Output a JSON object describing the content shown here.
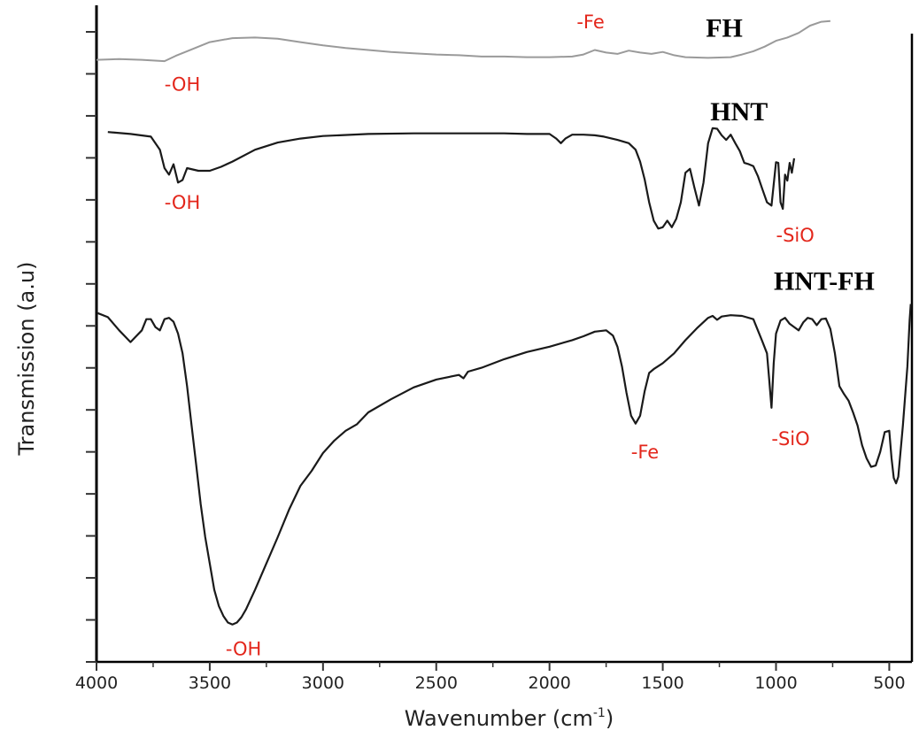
{
  "chart_data": {
    "type": "line",
    "xlabel": "Wavenumber (cm",
    "xlabel_sup": "-1",
    "xlabel_tail": ")",
    "ylabel": "Transmission (a.u)",
    "xlim": [
      4000,
      400
    ],
    "x_reversed": true,
    "ylim": [
      0,
      1
    ],
    "x_ticks": [
      4000,
      3500,
      3000,
      2500,
      2000,
      1500,
      1000,
      500
    ],
    "x_tick_labels": [
      "4000",
      "3500",
      "3000",
      "2500",
      "2000",
      "1500",
      "1000",
      "500"
    ],
    "y_tick_labels_shown": false,
    "grid": false,
    "annotation_color": "#e3261b",
    "series": [
      {
        "name": "FH",
        "color": "#9a9a9a",
        "points": [
          [
            4000,
            0.917
          ],
          [
            3900,
            0.918
          ],
          [
            3800,
            0.917
          ],
          [
            3700,
            0.915
          ],
          [
            3650,
            0.923
          ],
          [
            3600,
            0.93
          ],
          [
            3500,
            0.944
          ],
          [
            3400,
            0.95
          ],
          [
            3300,
            0.951
          ],
          [
            3200,
            0.949
          ],
          [
            3100,
            0.944
          ],
          [
            3000,
            0.939
          ],
          [
            2900,
            0.935
          ],
          [
            2800,
            0.932
          ],
          [
            2700,
            0.929
          ],
          [
            2600,
            0.927
          ],
          [
            2500,
            0.925
          ],
          [
            2400,
            0.924
          ],
          [
            2300,
            0.922
          ],
          [
            2200,
            0.922
          ],
          [
            2100,
            0.921
          ],
          [
            2000,
            0.921
          ],
          [
            1900,
            0.922
          ],
          [
            1850,
            0.925
          ],
          [
            1800,
            0.932
          ],
          [
            1750,
            0.928
          ],
          [
            1700,
            0.926
          ],
          [
            1650,
            0.931
          ],
          [
            1600,
            0.928
          ],
          [
            1550,
            0.926
          ],
          [
            1500,
            0.929
          ],
          [
            1450,
            0.924
          ],
          [
            1400,
            0.921
          ],
          [
            1300,
            0.92
          ],
          [
            1200,
            0.921
          ],
          [
            1150,
            0.925
          ],
          [
            1100,
            0.93
          ],
          [
            1050,
            0.937
          ],
          [
            1000,
            0.946
          ],
          [
            950,
            0.951
          ],
          [
            900,
            0.958
          ],
          [
            850,
            0.969
          ],
          [
            800,
            0.975
          ],
          [
            760,
            0.976
          ]
        ]
      },
      {
        "name": "HNT",
        "color": "#1a1a1a",
        "points": [
          [
            3950,
            0.807
          ],
          [
            3850,
            0.804
          ],
          [
            3760,
            0.8
          ],
          [
            3720,
            0.78
          ],
          [
            3700,
            0.752
          ],
          [
            3680,
            0.742
          ],
          [
            3660,
            0.758
          ],
          [
            3640,
            0.73
          ],
          [
            3620,
            0.734
          ],
          [
            3600,
            0.752
          ],
          [
            3550,
            0.748
          ],
          [
            3500,
            0.748
          ],
          [
            3450,
            0.754
          ],
          [
            3400,
            0.762
          ],
          [
            3300,
            0.78
          ],
          [
            3200,
            0.791
          ],
          [
            3100,
            0.797
          ],
          [
            3000,
            0.801
          ],
          [
            2800,
            0.804
          ],
          [
            2600,
            0.805
          ],
          [
            2400,
            0.805
          ],
          [
            2200,
            0.805
          ],
          [
            2100,
            0.804
          ],
          [
            2000,
            0.804
          ],
          [
            1970,
            0.797
          ],
          [
            1950,
            0.79
          ],
          [
            1930,
            0.797
          ],
          [
            1900,
            0.803
          ],
          [
            1850,
            0.803
          ],
          [
            1800,
            0.802
          ],
          [
            1760,
            0.8
          ],
          [
            1700,
            0.795
          ],
          [
            1650,
            0.79
          ],
          [
            1620,
            0.78
          ],
          [
            1600,
            0.762
          ],
          [
            1580,
            0.735
          ],
          [
            1560,
            0.7
          ],
          [
            1540,
            0.672
          ],
          [
            1520,
            0.66
          ],
          [
            1500,
            0.662
          ],
          [
            1480,
            0.672
          ],
          [
            1460,
            0.662
          ],
          [
            1440,
            0.675
          ],
          [
            1420,
            0.7
          ],
          [
            1400,
            0.745
          ],
          [
            1380,
            0.751
          ],
          [
            1360,
            0.722
          ],
          [
            1340,
            0.695
          ],
          [
            1320,
            0.73
          ],
          [
            1300,
            0.79
          ],
          [
            1280,
            0.813
          ],
          [
            1260,
            0.812
          ],
          [
            1240,
            0.802
          ],
          [
            1220,
            0.795
          ],
          [
            1200,
            0.803
          ],
          [
            1180,
            0.79
          ],
          [
            1160,
            0.778
          ],
          [
            1140,
            0.76
          ],
          [
            1120,
            0.758
          ],
          [
            1100,
            0.755
          ],
          [
            1080,
            0.74
          ],
          [
            1060,
            0.72
          ],
          [
            1040,
            0.7
          ],
          [
            1020,
            0.695
          ],
          [
            1000,
            0.761
          ],
          [
            990,
            0.76
          ],
          [
            980,
            0.7
          ],
          [
            970,
            0.69
          ],
          [
            960,
            0.742
          ],
          [
            950,
            0.733
          ],
          [
            940,
            0.76
          ],
          [
            930,
            0.745
          ],
          [
            920,
            0.767
          ]
        ]
      },
      {
        "name": "HNT-FH",
        "color": "#1a1a1a",
        "points": [
          [
            4000,
            0.532
          ],
          [
            3950,
            0.525
          ],
          [
            3900,
            0.505
          ],
          [
            3850,
            0.487
          ],
          [
            3800,
            0.505
          ],
          [
            3780,
            0.522
          ],
          [
            3760,
            0.522
          ],
          [
            3740,
            0.51
          ],
          [
            3720,
            0.505
          ],
          [
            3700,
            0.522
          ],
          [
            3680,
            0.524
          ],
          [
            3660,
            0.518
          ],
          [
            3640,
            0.5
          ],
          [
            3620,
            0.47
          ],
          [
            3600,
            0.42
          ],
          [
            3580,
            0.36
          ],
          [
            3560,
            0.3
          ],
          [
            3540,
            0.24
          ],
          [
            3520,
            0.19
          ],
          [
            3500,
            0.15
          ],
          [
            3480,
            0.11
          ],
          [
            3460,
            0.085
          ],
          [
            3440,
            0.07
          ],
          [
            3420,
            0.06
          ],
          [
            3400,
            0.057
          ],
          [
            3380,
            0.06
          ],
          [
            3360,
            0.068
          ],
          [
            3340,
            0.08
          ],
          [
            3300,
            0.11
          ],
          [
            3250,
            0.15
          ],
          [
            3200,
            0.19
          ],
          [
            3150,
            0.232
          ],
          [
            3100,
            0.268
          ],
          [
            3050,
            0.291
          ],
          [
            3000,
            0.318
          ],
          [
            2950,
            0.337
          ],
          [
            2900,
            0.352
          ],
          [
            2850,
            0.362
          ],
          [
            2800,
            0.38
          ],
          [
            2700,
            0.4
          ],
          [
            2600,
            0.418
          ],
          [
            2500,
            0.43
          ],
          [
            2400,
            0.437
          ],
          [
            2380,
            0.432
          ],
          [
            2360,
            0.442
          ],
          [
            2300,
            0.448
          ],
          [
            2200,
            0.461
          ],
          [
            2100,
            0.472
          ],
          [
            2000,
            0.48
          ],
          [
            1900,
            0.49
          ],
          [
            1850,
            0.496
          ],
          [
            1800,
            0.503
          ],
          [
            1750,
            0.505
          ],
          [
            1720,
            0.497
          ],
          [
            1700,
            0.48
          ],
          [
            1680,
            0.45
          ],
          [
            1660,
            0.41
          ],
          [
            1640,
            0.375
          ],
          [
            1620,
            0.363
          ],
          [
            1600,
            0.375
          ],
          [
            1580,
            0.412
          ],
          [
            1560,
            0.44
          ],
          [
            1540,
            0.446
          ],
          [
            1500,
            0.455
          ],
          [
            1450,
            0.47
          ],
          [
            1400,
            0.49
          ],
          [
            1350,
            0.508
          ],
          [
            1300,
            0.524
          ],
          [
            1280,
            0.527
          ],
          [
            1260,
            0.521
          ],
          [
            1240,
            0.526
          ],
          [
            1200,
            0.528
          ],
          [
            1150,
            0.527
          ],
          [
            1100,
            0.522
          ],
          [
            1080,
            0.505
          ],
          [
            1060,
            0.488
          ],
          [
            1040,
            0.47
          ],
          [
            1030,
            0.43
          ],
          [
            1020,
            0.387
          ],
          [
            1010,
            0.455
          ],
          [
            1000,
            0.5
          ],
          [
            980,
            0.52
          ],
          [
            960,
            0.524
          ],
          [
            940,
            0.515
          ],
          [
            920,
            0.51
          ],
          [
            900,
            0.505
          ],
          [
            880,
            0.517
          ],
          [
            860,
            0.524
          ],
          [
            840,
            0.522
          ],
          [
            820,
            0.513
          ],
          [
            800,
            0.522
          ],
          [
            780,
            0.523
          ],
          [
            760,
            0.507
          ],
          [
            740,
            0.47
          ],
          [
            720,
            0.42
          ],
          [
            700,
            0.408
          ],
          [
            680,
            0.398
          ],
          [
            660,
            0.38
          ],
          [
            640,
            0.36
          ],
          [
            620,
            0.33
          ],
          [
            600,
            0.31
          ],
          [
            580,
            0.297
          ],
          [
            560,
            0.299
          ],
          [
            540,
            0.32
          ],
          [
            520,
            0.35
          ],
          [
            500,
            0.352
          ],
          [
            490,
            0.31
          ],
          [
            480,
            0.28
          ],
          [
            470,
            0.272
          ],
          [
            460,
            0.282
          ],
          [
            440,
            0.36
          ],
          [
            420,
            0.45
          ],
          [
            410,
            0.52
          ],
          [
            405,
            0.545
          ]
        ]
      }
    ],
    "annotations": [
      {
        "text": "-OH",
        "x": 3700,
        "y": 0.87
      },
      {
        "text": "-Fe",
        "x": 1880,
        "y": 0.965
      },
      {
        "text": "-OH",
        "x": 3700,
        "y": 0.69
      },
      {
        "text": "-SiO",
        "x": 1000,
        "y": 0.64
      },
      {
        "text": "-Fe",
        "x": 1640,
        "y": 0.31
      },
      {
        "text": "-SiO",
        "x": 1020,
        "y": 0.33
      },
      {
        "text": "-OH",
        "x": 3430,
        "y": 0.01
      }
    ],
    "series_labels": [
      {
        "name": "FH",
        "x": 1310,
        "y": 0.952
      },
      {
        "name": "HNT",
        "x": 1290,
        "y": 0.825
      },
      {
        "name": "HNT-FH",
        "x": 1010,
        "y": 0.567
      }
    ]
  }
}
